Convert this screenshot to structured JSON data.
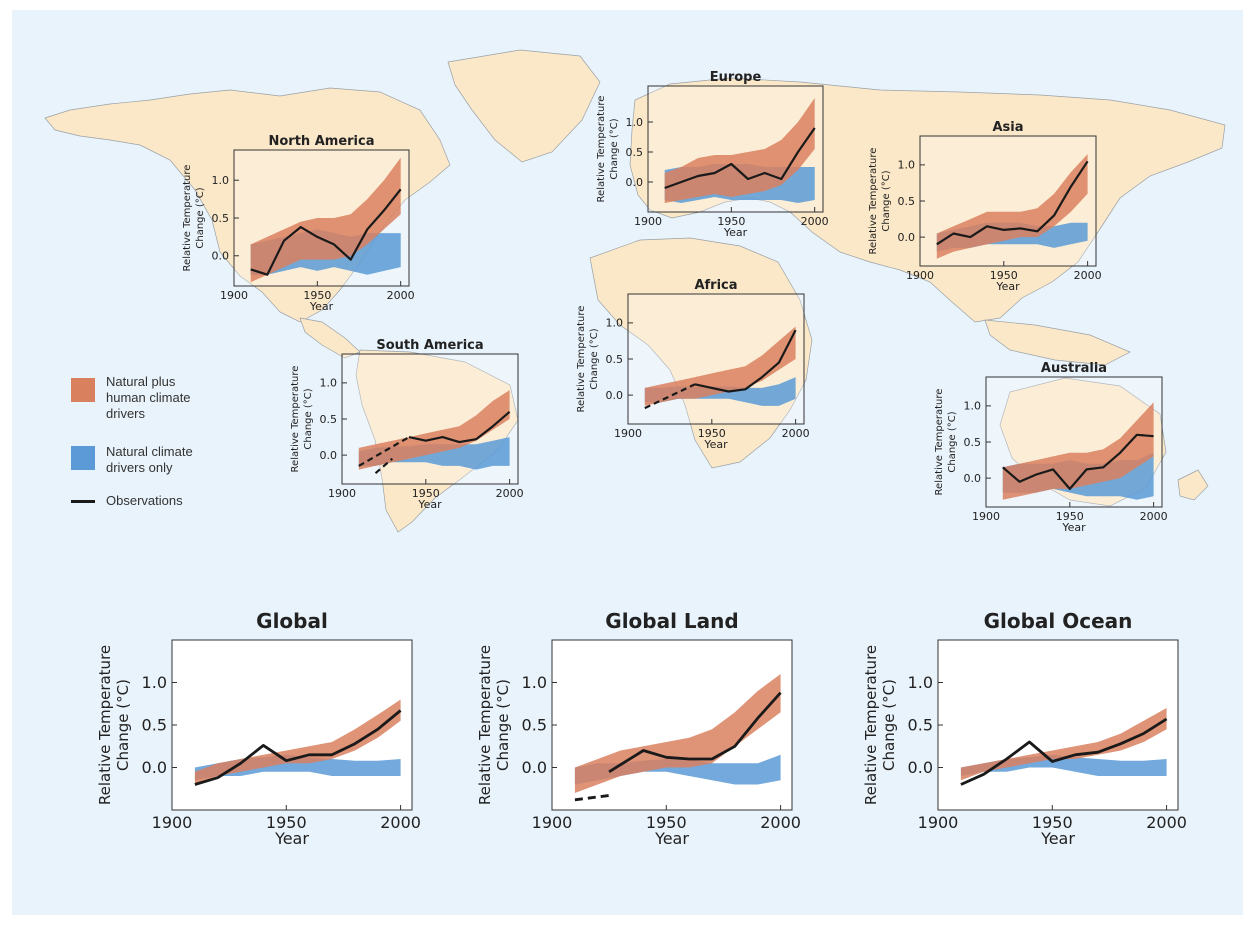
{
  "legend": {
    "natural_plus_human": [
      "Natural plus",
      "human climate",
      "drivers"
    ],
    "natural_only": [
      "Natural climate",
      "drivers only"
    ],
    "observations": "Observations",
    "colors": {
      "natural_plus_human": "#d9805f",
      "natural_only": "#5b9ad6",
      "observations": "#1a1a1a"
    }
  },
  "chart_data": [
    {
      "type": "area",
      "title": "North America",
      "xlabel": "Year",
      "ylabel": [
        "Relative Temperature",
        "Change (°C)"
      ],
      "xlim": [
        1900,
        2005
      ],
      "ylim": [
        -0.4,
        1.4
      ],
      "xticks": [
        1900,
        1950,
        2000
      ],
      "yticks": [
        0.0,
        0.5,
        1.0
      ],
      "x": [
        1910,
        1920,
        1930,
        1940,
        1950,
        1960,
        1970,
        1980,
        1990,
        2000
      ],
      "natural_plus_human": {
        "low": [
          -0.35,
          -0.25,
          -0.15,
          -0.05,
          -0.05,
          -0.05,
          0.0,
          0.15,
          0.35,
          0.55
        ],
        "high": [
          0.15,
          0.25,
          0.35,
          0.45,
          0.5,
          0.5,
          0.55,
          0.75,
          1.0,
          1.3
        ]
      },
      "natural_only": {
        "low": [
          -0.25,
          -0.25,
          -0.2,
          -0.15,
          -0.2,
          -0.15,
          -0.2,
          -0.25,
          -0.2,
          -0.15
        ],
        "high": [
          0.15,
          0.2,
          0.25,
          0.3,
          0.35,
          0.3,
          0.25,
          0.3,
          0.3,
          0.3
        ]
      },
      "observations": {
        "x": [
          1910,
          1920,
          1930,
          1940,
          1950,
          1960,
          1970,
          1980,
          1990,
          2000
        ],
        "y": [
          -0.18,
          -0.25,
          0.2,
          0.38,
          0.25,
          0.15,
          -0.05,
          0.35,
          0.6,
          0.88
        ]
      },
      "observations_dashed": []
    },
    {
      "type": "area",
      "title": "Europe",
      "xlabel": "Year",
      "ylabel": [
        "Relative Temperature",
        "Change (°C)"
      ],
      "xlim": [
        1900,
        2005
      ],
      "ylim": [
        -0.5,
        1.6
      ],
      "xticks": [
        1900,
        1950,
        2000
      ],
      "yticks": [
        0.0,
        0.5,
        1.0
      ],
      "x": [
        1910,
        1920,
        1930,
        1940,
        1950,
        1960,
        1970,
        1980,
        1990,
        2000
      ],
      "natural_plus_human": {
        "low": [
          -0.35,
          -0.3,
          -0.25,
          -0.2,
          -0.25,
          -0.2,
          -0.15,
          -0.05,
          0.2,
          0.55
        ],
        "high": [
          0.15,
          0.25,
          0.4,
          0.45,
          0.45,
          0.5,
          0.55,
          0.7,
          1.0,
          1.4
        ]
      },
      "natural_only": {
        "low": [
          -0.3,
          -0.35,
          -0.3,
          -0.25,
          -0.3,
          -0.3,
          -0.3,
          -0.3,
          -0.35,
          -0.3
        ],
        "high": [
          0.2,
          0.25,
          0.25,
          0.3,
          0.3,
          0.3,
          0.25,
          0.25,
          0.25,
          0.25
        ]
      },
      "observations": {
        "x": [
          1910,
          1920,
          1930,
          1940,
          1950,
          1960,
          1970,
          1980,
          1990,
          2000
        ],
        "y": [
          -0.1,
          0.0,
          0.1,
          0.15,
          0.3,
          0.05,
          0.15,
          0.05,
          0.5,
          0.9
        ]
      },
      "observations_dashed": []
    },
    {
      "type": "area",
      "title": "Asia",
      "xlabel": "Year",
      "ylabel": [
        "Relative Temperature",
        "Change (°C)"
      ],
      "xlim": [
        1900,
        2005
      ],
      "ylim": [
        -0.4,
        1.4
      ],
      "xticks": [
        1900,
        1950,
        2000
      ],
      "yticks": [
        0.0,
        0.5,
        1.0
      ],
      "x": [
        1910,
        1920,
        1930,
        1940,
        1950,
        1960,
        1970,
        1980,
        1990,
        2000
      ],
      "natural_plus_human": {
        "low": [
          -0.3,
          -0.2,
          -0.15,
          -0.1,
          -0.05,
          0.0,
          0.0,
          0.15,
          0.35,
          0.6
        ],
        "high": [
          0.05,
          0.15,
          0.25,
          0.35,
          0.35,
          0.35,
          0.4,
          0.6,
          0.9,
          1.15
        ]
      },
      "natural_only": {
        "low": [
          -0.2,
          -0.15,
          -0.15,
          -0.1,
          -0.1,
          -0.1,
          -0.1,
          -0.15,
          -0.1,
          -0.05
        ],
        "high": [
          0.05,
          0.1,
          0.15,
          0.2,
          0.2,
          0.2,
          0.15,
          0.15,
          0.2,
          0.2
        ]
      },
      "observations": {
        "x": [
          1910,
          1920,
          1930,
          1940,
          1950,
          1960,
          1970,
          1980,
          1990,
          2000
        ],
        "y": [
          -0.1,
          0.05,
          0.0,
          0.15,
          0.1,
          0.12,
          0.08,
          0.3,
          0.7,
          1.05
        ]
      },
      "observations_dashed": []
    },
    {
      "type": "area",
      "title": "Africa",
      "xlabel": "Year",
      "ylabel": [
        "Relative Temperature",
        "Change (°C)"
      ],
      "xlim": [
        1900,
        2005
      ],
      "ylim": [
        -0.4,
        1.4
      ],
      "xticks": [
        1900,
        1950,
        2000
      ],
      "yticks": [
        0.0,
        0.5,
        1.0
      ],
      "x": [
        1910,
        1920,
        1930,
        1940,
        1950,
        1960,
        1970,
        1980,
        1990,
        2000
      ],
      "natural_plus_human": {
        "low": [
          -0.15,
          -0.1,
          -0.05,
          -0.05,
          0.0,
          0.05,
          0.1,
          0.2,
          0.35,
          0.5
        ],
        "high": [
          0.1,
          0.15,
          0.2,
          0.25,
          0.3,
          0.35,
          0.4,
          0.55,
          0.75,
          0.95
        ]
      },
      "natural_only": {
        "low": [
          -0.1,
          -0.1,
          -0.05,
          -0.05,
          -0.05,
          -0.05,
          -0.1,
          -0.15,
          -0.15,
          -0.05
        ],
        "high": [
          0.1,
          0.1,
          0.12,
          0.12,
          0.12,
          0.12,
          0.1,
          0.1,
          0.15,
          0.25
        ]
      },
      "observations": {
        "x": [
          1940,
          1950,
          1960,
          1970,
          1980,
          1990,
          2000
        ],
        "y": [
          0.15,
          0.1,
          0.05,
          0.08,
          0.25,
          0.45,
          0.9
        ]
      },
      "observations_dashed": [
        {
          "x": [
            1910,
            1940
          ],
          "y": [
            -0.18,
            0.15
          ]
        }
      ]
    },
    {
      "type": "area",
      "title": "South America",
      "xlabel": "Year",
      "ylabel": [
        "Relative Temperature",
        "Change (°C)"
      ],
      "xlim": [
        1900,
        2005
      ],
      "ylim": [
        -0.4,
        1.4
      ],
      "xticks": [
        1900,
        1950,
        2000
      ],
      "yticks": [
        0.0,
        0.5,
        1.0
      ],
      "x": [
        1910,
        1920,
        1930,
        1940,
        1950,
        1960,
        1970,
        1980,
        1990,
        2000
      ],
      "natural_plus_human": {
        "low": [
          -0.2,
          -0.15,
          -0.1,
          -0.05,
          0.0,
          0.05,
          0.1,
          0.2,
          0.35,
          0.5
        ],
        "high": [
          0.1,
          0.15,
          0.2,
          0.25,
          0.3,
          0.35,
          0.4,
          0.55,
          0.75,
          0.9
        ]
      },
      "natural_only": {
        "low": [
          -0.15,
          -0.15,
          -0.1,
          -0.1,
          -0.1,
          -0.15,
          -0.15,
          -0.2,
          -0.15,
          -0.15
        ],
        "high": [
          0.05,
          0.1,
          0.12,
          0.12,
          0.15,
          0.15,
          0.15,
          0.15,
          0.2,
          0.25
        ]
      },
      "observations": {
        "x": [
          1940,
          1950,
          1960,
          1970,
          1980,
          1990,
          2000
        ],
        "y": [
          0.25,
          0.2,
          0.25,
          0.18,
          0.22,
          0.4,
          0.6
        ]
      },
      "observations_dashed": [
        {
          "x": [
            1910,
            1940
          ],
          "y": [
            -0.15,
            0.25
          ]
        },
        {
          "x": [
            1920,
            1930
          ],
          "y": [
            -0.25,
            -0.05
          ]
        }
      ]
    },
    {
      "type": "area",
      "title": "Australia",
      "xlabel": "Year",
      "ylabel": [
        "Relative Temperature",
        "Change (°C)"
      ],
      "xlim": [
        1900,
        2005
      ],
      "ylim": [
        -0.4,
        1.4
      ],
      "xticks": [
        1900,
        1950,
        2000
      ],
      "yticks": [
        0.0,
        0.5,
        1.0
      ],
      "x": [
        1910,
        1920,
        1930,
        1940,
        1950,
        1960,
        1970,
        1980,
        1990,
        2000
      ],
      "natural_plus_human": {
        "low": [
          -0.3,
          -0.25,
          -0.2,
          -0.15,
          -0.15,
          -0.1,
          -0.05,
          0.0,
          0.15,
          0.3
        ],
        "high": [
          0.15,
          0.2,
          0.25,
          0.3,
          0.35,
          0.35,
          0.4,
          0.55,
          0.8,
          1.05
        ]
      },
      "natural_only": {
        "low": [
          -0.2,
          -0.2,
          -0.2,
          -0.15,
          -0.2,
          -0.25,
          -0.25,
          -0.25,
          -0.3,
          -0.25
        ],
        "high": [
          0.15,
          0.2,
          0.2,
          0.2,
          0.25,
          0.2,
          0.2,
          0.25,
          0.25,
          0.35
        ]
      },
      "observations": {
        "x": [
          1910,
          1920,
          1930,
          1940,
          1950,
          1960,
          1970,
          1980,
          1990,
          2000
        ],
        "y": [
          0.15,
          -0.05,
          0.05,
          0.12,
          -0.15,
          0.12,
          0.15,
          0.35,
          0.6,
          0.58
        ]
      },
      "observations_dashed": []
    },
    {
      "type": "area",
      "title": "Global",
      "xlabel": "Year",
      "ylabel": [
        "Relative Temperature",
        "Change (°C)"
      ],
      "xlim": [
        1900,
        2005
      ],
      "ylim": [
        -0.5,
        1.5
      ],
      "xticks": [
        1900,
        1950,
        2000
      ],
      "yticks": [
        0.0,
        0.5,
        1.0
      ],
      "x": [
        1910,
        1920,
        1930,
        1940,
        1950,
        1960,
        1970,
        1980,
        1990,
        2000
      ],
      "natural_plus_human": {
        "low": [
          -0.2,
          -0.1,
          -0.05,
          0.0,
          0.05,
          0.05,
          0.1,
          0.2,
          0.35,
          0.55
        ],
        "high": [
          -0.05,
          0.05,
          0.1,
          0.15,
          0.2,
          0.25,
          0.3,
          0.45,
          0.62,
          0.8
        ]
      },
      "natural_only": {
        "low": [
          -0.15,
          -0.1,
          -0.1,
          -0.05,
          -0.05,
          -0.05,
          -0.1,
          -0.1,
          -0.1,
          -0.1
        ],
        "high": [
          0.0,
          0.05,
          0.1,
          0.12,
          0.15,
          0.12,
          0.1,
          0.08,
          0.08,
          0.1
        ]
      },
      "observations": {
        "x": [
          1910,
          1920,
          1930,
          1940,
          1950,
          1960,
          1970,
          1980,
          1990,
          2000
        ],
        "y": [
          -0.2,
          -0.12,
          0.05,
          0.26,
          0.08,
          0.15,
          0.15,
          0.28,
          0.45,
          0.67
        ]
      },
      "observations_dashed": []
    },
    {
      "type": "area",
      "title": "Global Land",
      "xlabel": "Year",
      "ylabel": [
        "Relative Temperature",
        "Change (°C)"
      ],
      "xlim": [
        1900,
        2005
      ],
      "ylim": [
        -0.5,
        1.5
      ],
      "xticks": [
        1900,
        1950,
        2000
      ],
      "yticks": [
        0.0,
        0.5,
        1.0
      ],
      "x": [
        1910,
        1920,
        1930,
        1940,
        1950,
        1960,
        1970,
        1980,
        1990,
        2000
      ],
      "natural_plus_human": {
        "low": [
          -0.3,
          -0.2,
          -0.1,
          -0.05,
          0.0,
          0.0,
          0.05,
          0.25,
          0.45,
          0.65
        ],
        "high": [
          0.0,
          0.1,
          0.2,
          0.25,
          0.3,
          0.35,
          0.45,
          0.65,
          0.9,
          1.1
        ]
      },
      "natural_only": {
        "low": [
          -0.2,
          -0.15,
          -0.1,
          -0.05,
          -0.05,
          -0.1,
          -0.15,
          -0.2,
          -0.2,
          -0.15
        ],
        "high": [
          0.0,
          0.05,
          0.05,
          0.08,
          0.1,
          0.1,
          0.05,
          0.05,
          0.05,
          0.15
        ]
      },
      "observations": {
        "x": [
          1925,
          1940,
          1950,
          1960,
          1970,
          1980,
          1990,
          2000
        ],
        "y": [
          -0.05,
          0.2,
          0.12,
          0.1,
          0.1,
          0.25,
          0.58,
          0.88
        ]
      },
      "observations_dashed": [
        {
          "x": [
            1910,
            1925
          ],
          "y": [
            -0.38,
            -0.33
          ]
        }
      ]
    },
    {
      "type": "area",
      "title": "Global Ocean",
      "xlabel": "Year",
      "ylabel": [
        "Relative Temperature",
        "Change (°C)"
      ],
      "xlim": [
        1900,
        2005
      ],
      "ylim": [
        -0.5,
        1.5
      ],
      "xticks": [
        1900,
        1950,
        2000
      ],
      "yticks": [
        0.0,
        0.5,
        1.0
      ],
      "x": [
        1910,
        1920,
        1930,
        1940,
        1950,
        1960,
        1970,
        1980,
        1990,
        2000
      ],
      "natural_plus_human": {
        "low": [
          -0.15,
          -0.05,
          0.0,
          0.05,
          0.1,
          0.1,
          0.15,
          0.2,
          0.3,
          0.45
        ],
        "high": [
          0.0,
          0.05,
          0.1,
          0.15,
          0.2,
          0.25,
          0.3,
          0.4,
          0.55,
          0.7
        ]
      },
      "natural_only": {
        "low": [
          -0.1,
          -0.05,
          -0.05,
          0.0,
          0.0,
          -0.05,
          -0.1,
          -0.1,
          -0.1,
          -0.1
        ],
        "high": [
          0.0,
          0.05,
          0.1,
          0.12,
          0.15,
          0.12,
          0.1,
          0.08,
          0.08,
          0.1
        ]
      },
      "observations": {
        "x": [
          1910,
          1920,
          1930,
          1940,
          1950,
          1960,
          1970,
          1980,
          1990,
          2000
        ],
        "y": [
          -0.2,
          -0.08,
          0.1,
          0.3,
          0.07,
          0.15,
          0.18,
          0.28,
          0.4,
          0.57
        ]
      },
      "observations_dashed": []
    }
  ]
}
